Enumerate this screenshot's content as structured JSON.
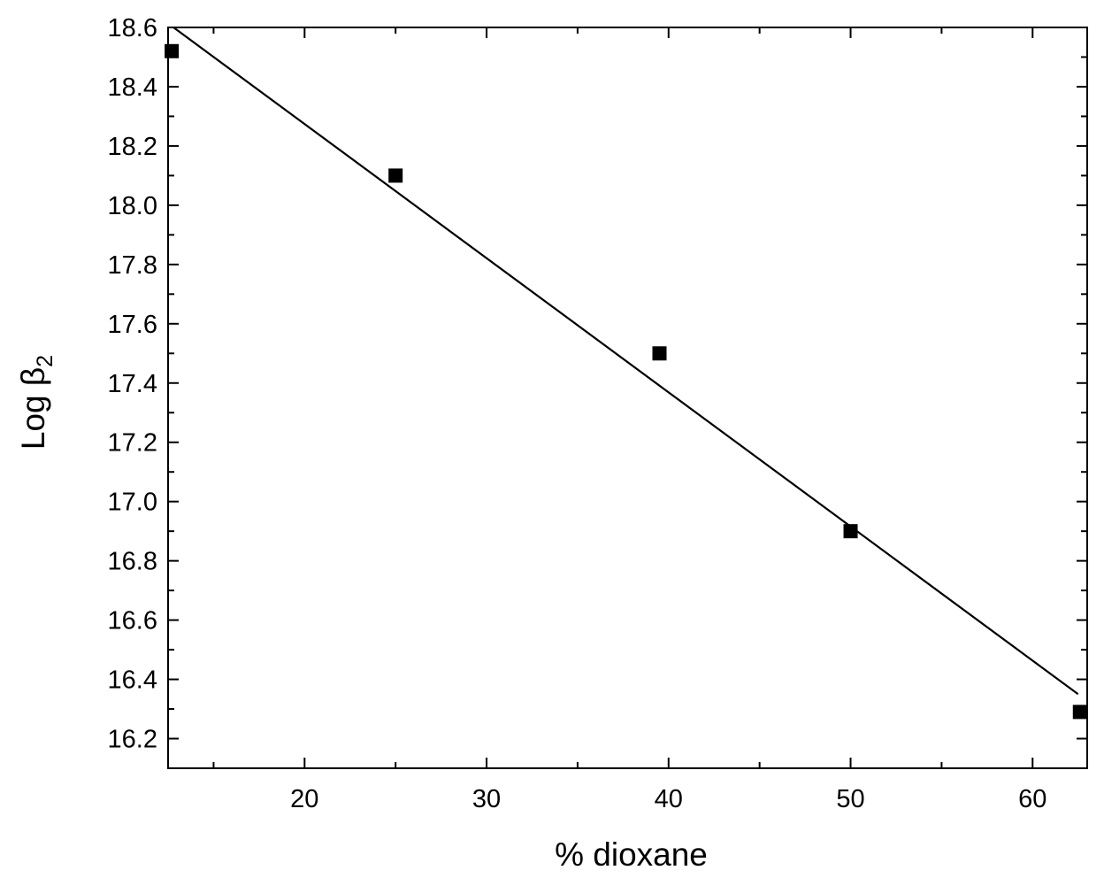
{
  "chart_data": {
    "type": "scatter",
    "xlabel": "% dioxane",
    "ylabel": {
      "main": "Log β",
      "subscript": "2"
    },
    "xlim": [
      12.5,
      63
    ],
    "ylim": [
      16.1,
      18.6
    ],
    "x_ticks": [
      20,
      30,
      40,
      50,
      60
    ],
    "x_tick_labels": [
      "20",
      "30",
      "40",
      "50",
      "60"
    ],
    "y_ticks": [
      16.2,
      16.4,
      16.6,
      16.8,
      17.0,
      17.2,
      17.4,
      17.6,
      17.8,
      18.0,
      18.2,
      18.4,
      18.6
    ],
    "y_tick_labels": [
      "16.2",
      "16.4",
      "16.6",
      "16.8",
      "17.0",
      "17.2",
      "17.4",
      "17.6",
      "17.8",
      "18.0",
      "18.2",
      "18.4",
      "18.6"
    ],
    "series": [
      {
        "points": [
          {
            "x": 12.7,
            "y": 18.52
          },
          {
            "x": 25.0,
            "y": 18.1
          },
          {
            "x": 39.5,
            "y": 17.5
          },
          {
            "x": 50.0,
            "y": 16.9
          },
          {
            "x": 62.6,
            "y": 16.29
          }
        ],
        "marker": "square",
        "color": "#000000"
      }
    ],
    "fit_line": {
      "x": [
        12.8,
        62.5
      ],
      "y": [
        18.6,
        16.35
      ],
      "color": "#000000"
    },
    "grid": false,
    "legend": "none"
  }
}
